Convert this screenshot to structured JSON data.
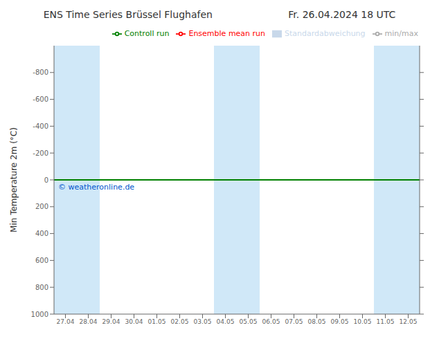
{
  "chart_data": {
    "type": "line",
    "title": "ENS Time Series Brüssel Flughafen",
    "subtitle": "Fr. 26.04.2024 18 UTC",
    "y_label": "Min Temperature 2m (°C)",
    "categories": [
      "27.04",
      "28.04",
      "29.04",
      "30.04",
      "01.05",
      "02.05",
      "03.05",
      "04.05",
      "05.05",
      "06.05",
      "07.05",
      "08.05",
      "09.05",
      "10.05",
      "11.05",
      "12.05"
    ],
    "series": [
      {
        "name": "min/max",
        "type": "line",
        "color": "#aaaaaa",
        "values": [
          null,
          null,
          null,
          null,
          null,
          null,
          null,
          null,
          null,
          null,
          null,
          null,
          null,
          null,
          null,
          null
        ]
      },
      {
        "name": "Standardabweichung",
        "type": "area",
        "color": "#c8d8ea",
        "values": [
          null,
          null,
          null,
          null,
          null,
          null,
          null,
          null,
          null,
          null,
          null,
          null,
          null,
          null,
          null,
          null
        ]
      },
      {
        "name": "Ensemble mean run",
        "type": "line",
        "color": "#ff0000",
        "values": [
          null,
          null,
          null,
          null,
          null,
          null,
          null,
          null,
          null,
          null,
          null,
          null,
          null,
          null,
          null,
          null
        ]
      },
      {
        "name": "Controll run",
        "type": "line",
        "color": "#008000",
        "values": [
          null,
          null,
          null,
          null,
          null,
          null,
          null,
          null,
          null,
          null,
          null,
          null,
          null,
          null,
          null,
          null
        ]
      }
    ],
    "ylim": [
      1000,
      -1000
    ],
    "yticks": [
      -800,
      -600,
      -400,
      -200,
      0,
      200,
      400,
      600,
      800,
      1000
    ],
    "grid": false,
    "legend": "upper right",
    "shaded_bands": {
      "color": "#d0e8f8",
      "ranges": [
        [
          "27.04",
          "28.04"
        ],
        [
          "04.05",
          "05.05"
        ],
        [
          "11.05",
          "12.05"
        ]
      ]
    },
    "annotations": [
      {
        "type": "hline",
        "y": 0,
        "color": "#ff0000"
      },
      {
        "type": "hline",
        "y": 0,
        "color": "#008000"
      },
      {
        "type": "text",
        "text": "© weatheronline.de",
        "color": "#0055cc"
      }
    ]
  }
}
